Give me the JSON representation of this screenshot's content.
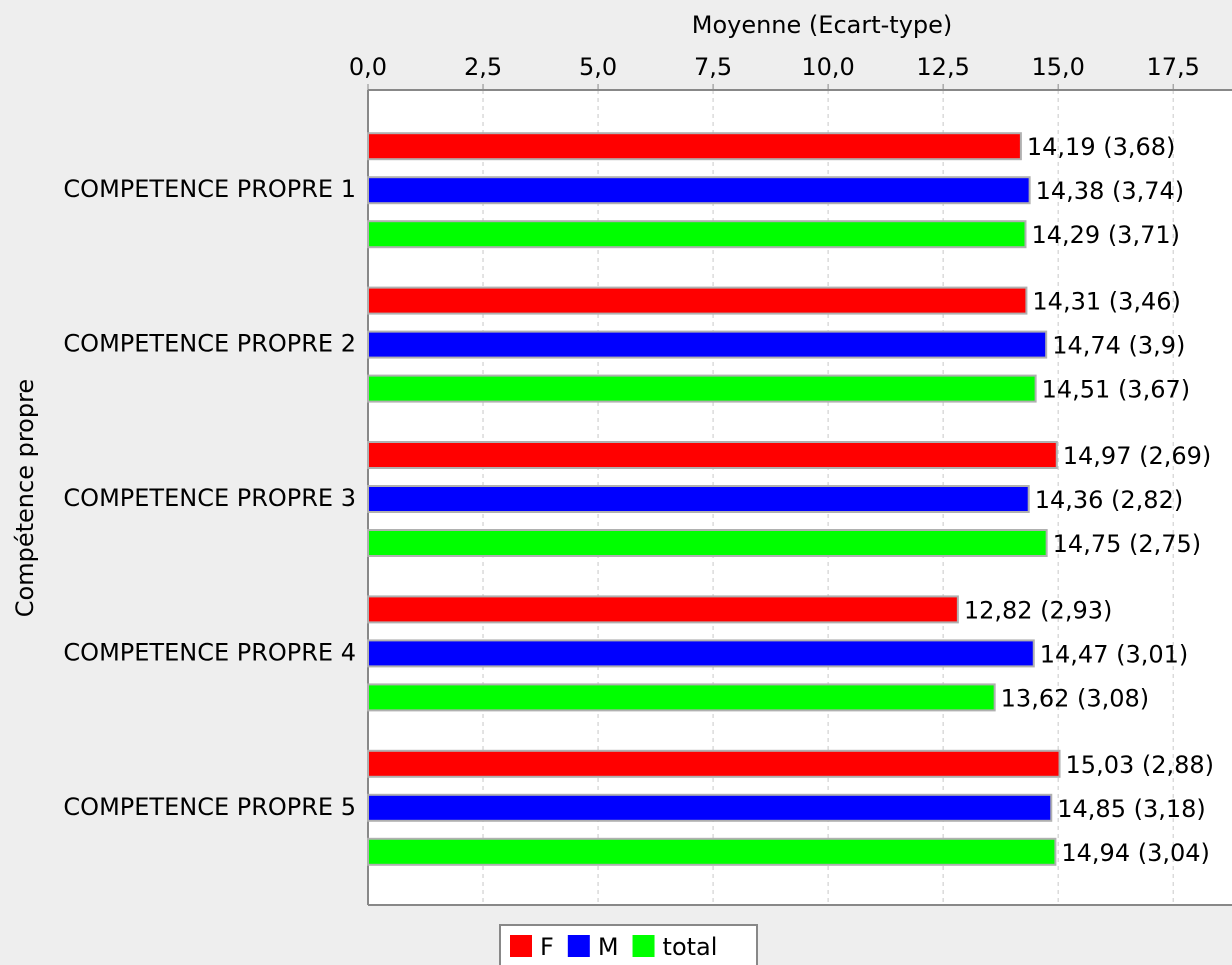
{
  "chart_data": {
    "type": "hbar",
    "x_label": "Moyenne (Ecart-type)",
    "y_label": "Compétence propre",
    "categories": [
      "COMPETENCE PROPRE 1",
      "COMPETENCE PROPRE 2",
      "COMPETENCE PROPRE 3",
      "COMPETENCE PROPRE 4",
      "COMPETENCE PROPRE 5"
    ],
    "series": [
      {
        "name": "F",
        "color": "#ff0000",
        "values": [
          14.19,
          14.31,
          14.97,
          12.82,
          15.03
        ],
        "value_labels": [
          "14,19 (3,68)",
          "14,31 (3,46)",
          "14,97 (2,69)",
          "12,82 (2,93)",
          "15,03 (2,88)"
        ]
      },
      {
        "name": "M",
        "color": "#0000ff",
        "values": [
          14.38,
          14.74,
          14.36,
          14.47,
          14.85
        ],
        "value_labels": [
          "14,38 (3,74)",
          "14,74 (3,9)",
          "14,36 (2,82)",
          "14,47 (3,01)",
          "14,85 (3,18)"
        ]
      },
      {
        "name": "total",
        "color": "#00ff00",
        "values": [
          14.29,
          14.51,
          14.75,
          13.62,
          14.94
        ],
        "value_labels": [
          "14,29 (3,71)",
          "14,51 (3,67)",
          "14,75 (2,75)",
          "13,62 (3,08)",
          "14,94 (3,04)"
        ]
      }
    ],
    "xlim": [
      0,
      18.8
    ],
    "xticks": [
      {
        "value": 0,
        "label": "0,0"
      },
      {
        "value": 2.5,
        "label": "2,5"
      },
      {
        "value": 5,
        "label": "5,0"
      },
      {
        "value": 7.5,
        "label": "7,5"
      },
      {
        "value": 10,
        "label": "10,0"
      },
      {
        "value": 12.5,
        "label": "12,5"
      },
      {
        "value": 15,
        "label": "15,0"
      },
      {
        "value": 17.5,
        "label": "17,5"
      }
    ],
    "grid": true,
    "legend": "bottom"
  }
}
